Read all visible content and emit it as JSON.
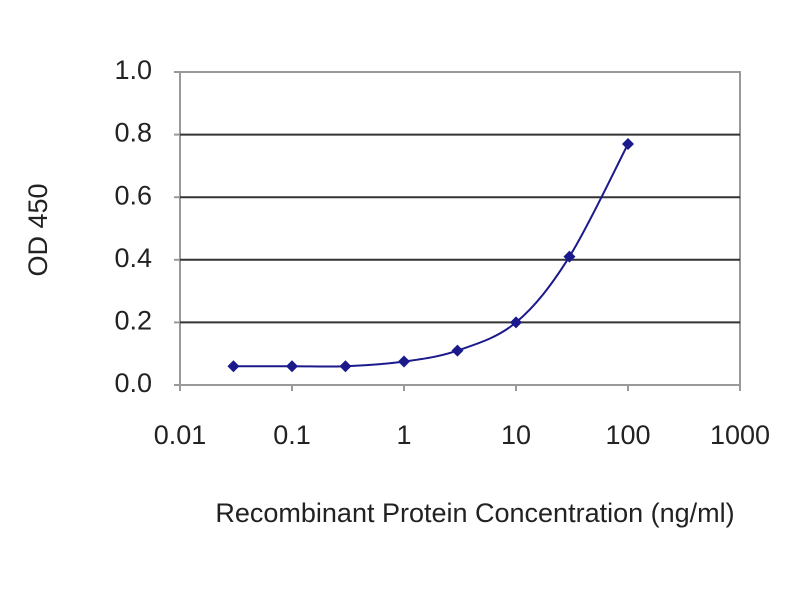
{
  "chart_data": {
    "type": "line",
    "x_label": "Recombinant Protein Concentration (ng/ml)",
    "y_label": "OD 450",
    "x": [
      0.03,
      0.1,
      0.3,
      1,
      3,
      10,
      30,
      100
    ],
    "series": [
      {
        "color": "#1a1a8c",
        "values": [
          0.06,
          0.06,
          0.06,
          0.075,
          0.11,
          0.2,
          0.41,
          0.77
        ]
      }
    ],
    "x_log": true,
    "xlim": [
      0.01,
      1000
    ],
    "xticks": [
      0.01,
      0.1,
      1,
      10,
      100,
      1000
    ],
    "ylim": [
      0,
      1
    ],
    "yticks": [
      {
        "value": 0,
        "label": "0.0"
      },
      0.2,
      0.4,
      0.6,
      0.8,
      {
        "value": 1,
        "label": "1.0"
      }
    ],
    "grid": true
  }
}
